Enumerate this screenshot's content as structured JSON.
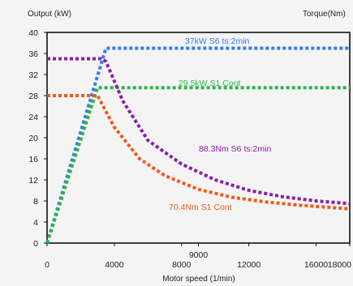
{
  "chart_data": {
    "type": "line",
    "y_left_label": "Output (kW)",
    "y_right_label": "Torque(Nm)",
    "xlabel": "Motor speed (1/min)",
    "x_ticks": [
      "0",
      "4000",
      "8000",
      "12000",
      "16000",
      "18000"
    ],
    "x_extra_tick": "9000",
    "y_ticks": [
      "0",
      "4",
      "8",
      "12",
      "16",
      "20",
      "24",
      "28",
      "32",
      "36",
      "40"
    ],
    "xlim": [
      0,
      18000
    ],
    "ylim": [
      0,
      40
    ],
    "series": [
      {
        "name": "37kW S6 ts:2min",
        "color": "#2f7fe6",
        "x": [
          0,
          3500,
          18000
        ],
        "y": [
          0,
          37,
          37
        ]
      },
      {
        "name": "29.5kW S1 Cont",
        "color": "#2fb24a",
        "x": [
          0,
          3000,
          18000
        ],
        "y": [
          0,
          29.5,
          29.5
        ]
      },
      {
        "name": "88.3Nm S6 ts:2min",
        "color": "#8a1fa8",
        "x": [
          0,
          3200,
          3500,
          4500,
          6000,
          8000,
          10000,
          12000,
          14000,
          16000,
          18000
        ],
        "y": [
          35,
          35,
          34.5,
          27,
          19.5,
          15,
          12,
          10,
          8.8,
          8,
          7.5
        ]
      },
      {
        "name": "70.4Nm S1 Cont",
        "color": "#f05a1a",
        "x": [
          0,
          2800,
          3000,
          4000,
          5500,
          7000,
          9000,
          11000,
          13000,
          15000,
          18000
        ],
        "y": [
          28,
          28,
          28,
          22,
          16,
          12.8,
          10.2,
          8.7,
          7.8,
          7.2,
          6.5
        ]
      }
    ]
  }
}
